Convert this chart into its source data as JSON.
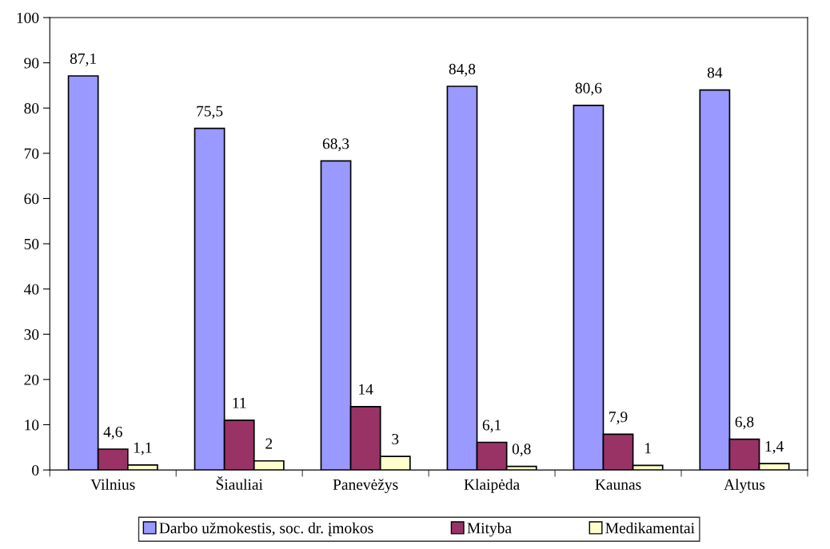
{
  "chart_data": {
    "type": "bar",
    "categories": [
      "Vilnius",
      "Šiauliai",
      "Panevėžys",
      "Klaipėda",
      "Kaunas",
      "Alytus"
    ],
    "series": [
      {
        "name": "Darbo užmokestis, soc. dr. įmokos",
        "color": "#9999ff",
        "values": [
          87.1,
          75.5,
          68.3,
          84.8,
          80.6,
          84
        ],
        "value_labels": [
          "87,1",
          "75,5",
          "68,3",
          "84,8",
          "80,6",
          "84"
        ]
      },
      {
        "name": "Mityba",
        "color": "#993366",
        "values": [
          4.6,
          11,
          14,
          6.1,
          7.9,
          6.8
        ],
        "value_labels": [
          "4,6",
          "11",
          "14",
          "6,1",
          "7,9",
          "6,8"
        ]
      },
      {
        "name": "Medikamentai",
        "color": "#ffffcc",
        "values": [
          1.1,
          2,
          3,
          0.8,
          1,
          1.4
        ],
        "value_labels": [
          "1,1",
          "2",
          "3",
          "0,8",
          "1",
          "1,4"
        ]
      }
    ],
    "ylim": [
      0,
      100
    ],
    "yticks": [
      0,
      10,
      20,
      30,
      40,
      50,
      60,
      70,
      80,
      90,
      100
    ],
    "grid": false,
    "legend": "bottom"
  }
}
